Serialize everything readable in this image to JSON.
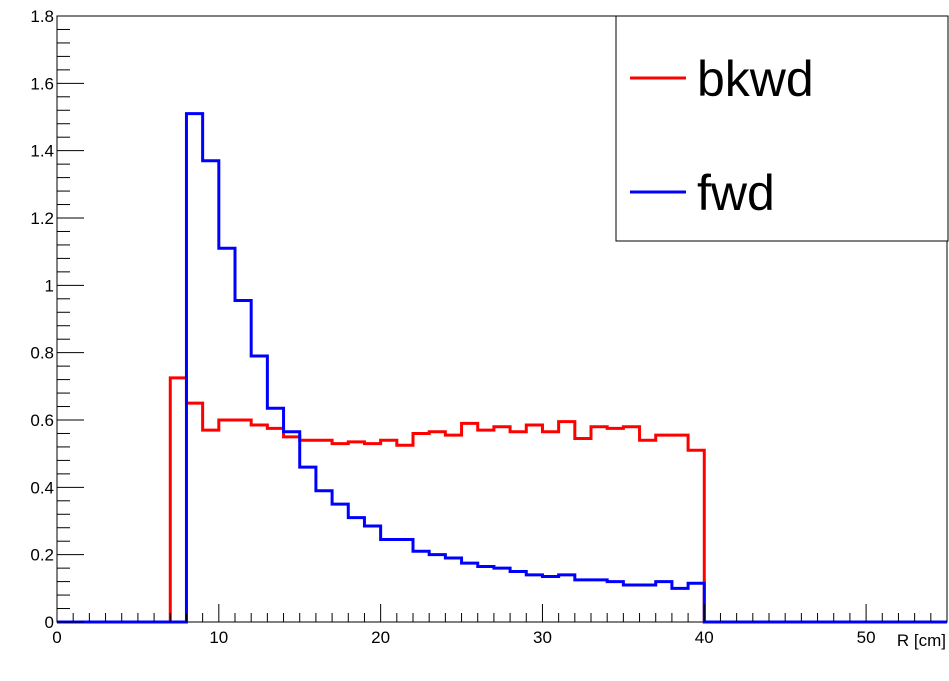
{
  "chart_data": {
    "type": "line",
    "xlabel": "R [cm]",
    "ylabel": "",
    "xlim": [
      0,
      55
    ],
    "ylim": [
      0,
      1.8
    ],
    "x_ticks": [
      0,
      10,
      20,
      30,
      40,
      50
    ],
    "y_ticks": [
      0,
      0.2,
      0.4,
      0.6,
      0.8,
      1,
      1.2,
      1.4,
      1.6,
      1.8
    ],
    "y_tick_labels": [
      "0",
      "0.2",
      "0.4",
      "0.6",
      "0.8",
      "1",
      "1.2",
      "1.4",
      "1.6",
      "1.8"
    ],
    "grid": false,
    "legend_position": "top-right",
    "bin_edges": [
      0,
      1,
      2,
      3,
      4,
      5,
      6,
      7,
      8,
      9,
      10,
      11,
      12,
      13,
      14,
      15,
      16,
      17,
      18,
      19,
      20,
      21,
      22,
      23,
      24,
      25,
      26,
      27,
      28,
      29,
      30,
      31,
      32,
      33,
      34,
      35,
      36,
      37,
      38,
      39,
      40,
      41,
      42,
      43,
      44,
      45,
      46,
      47,
      48,
      49,
      50,
      51,
      52,
      53,
      54,
      55
    ],
    "series": [
      {
        "name": "bkwd",
        "color": "#ff0000",
        "values": [
          0,
          0,
          0,
          0,
          0,
          0,
          0,
          0.725,
          0.65,
          0.57,
          0.6,
          0.6,
          0.585,
          0.575,
          0.55,
          0.54,
          0.54,
          0.53,
          0.535,
          0.53,
          0.54,
          0.525,
          0.56,
          0.565,
          0.555,
          0.59,
          0.57,
          0.58,
          0.565,
          0.585,
          0.565,
          0.595,
          0.545,
          0.58,
          0.575,
          0.58,
          0.54,
          0.555,
          0.555,
          0.51,
          0,
          0,
          0,
          0,
          0,
          0,
          0,
          0,
          0,
          0,
          0,
          0,
          0,
          0,
          0
        ]
      },
      {
        "name": "fwd",
        "color": "#0000ff",
        "values": [
          0,
          0,
          0,
          0,
          0,
          0,
          0,
          0,
          1.51,
          1.37,
          1.11,
          0.955,
          0.79,
          0.635,
          0.565,
          0.46,
          0.39,
          0.35,
          0.31,
          0.285,
          0.245,
          0.245,
          0.21,
          0.2,
          0.19,
          0.175,
          0.165,
          0.16,
          0.15,
          0.14,
          0.135,
          0.14,
          0.125,
          0.125,
          0.12,
          0.11,
          0.11,
          0.12,
          0.1,
          0.115,
          0,
          0,
          0,
          0,
          0,
          0,
          0,
          0,
          0,
          0,
          0,
          0,
          0,
          0,
          0
        ]
      }
    ]
  }
}
